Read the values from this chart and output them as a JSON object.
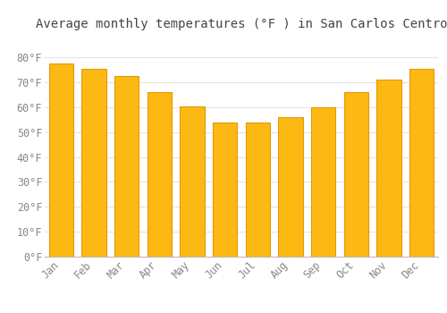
{
  "title": "Average monthly temperatures (°F ) in San Carlos Centro",
  "months": [
    "Jan",
    "Feb",
    "Mar",
    "Apr",
    "May",
    "Jun",
    "Jul",
    "Aug",
    "Sep",
    "Oct",
    "Nov",
    "Dec"
  ],
  "values": [
    77.5,
    75.5,
    72.5,
    66,
    60.5,
    54,
    54,
    56,
    60,
    66,
    71,
    75.5
  ],
  "bar_color": "#FDB913",
  "bar_edge_color": "#E8960A",
  "background_color": "#FFFFFF",
  "grid_color": "#DDDDDD",
  "text_color": "#888888",
  "title_color": "#444444",
  "ylim": [
    0,
    88
  ],
  "yticks": [
    0,
    10,
    20,
    30,
    40,
    50,
    60,
    70,
    80
  ],
  "title_fontsize": 10,
  "tick_fontsize": 8.5,
  "font_family": "monospace",
  "bar_width": 0.75
}
